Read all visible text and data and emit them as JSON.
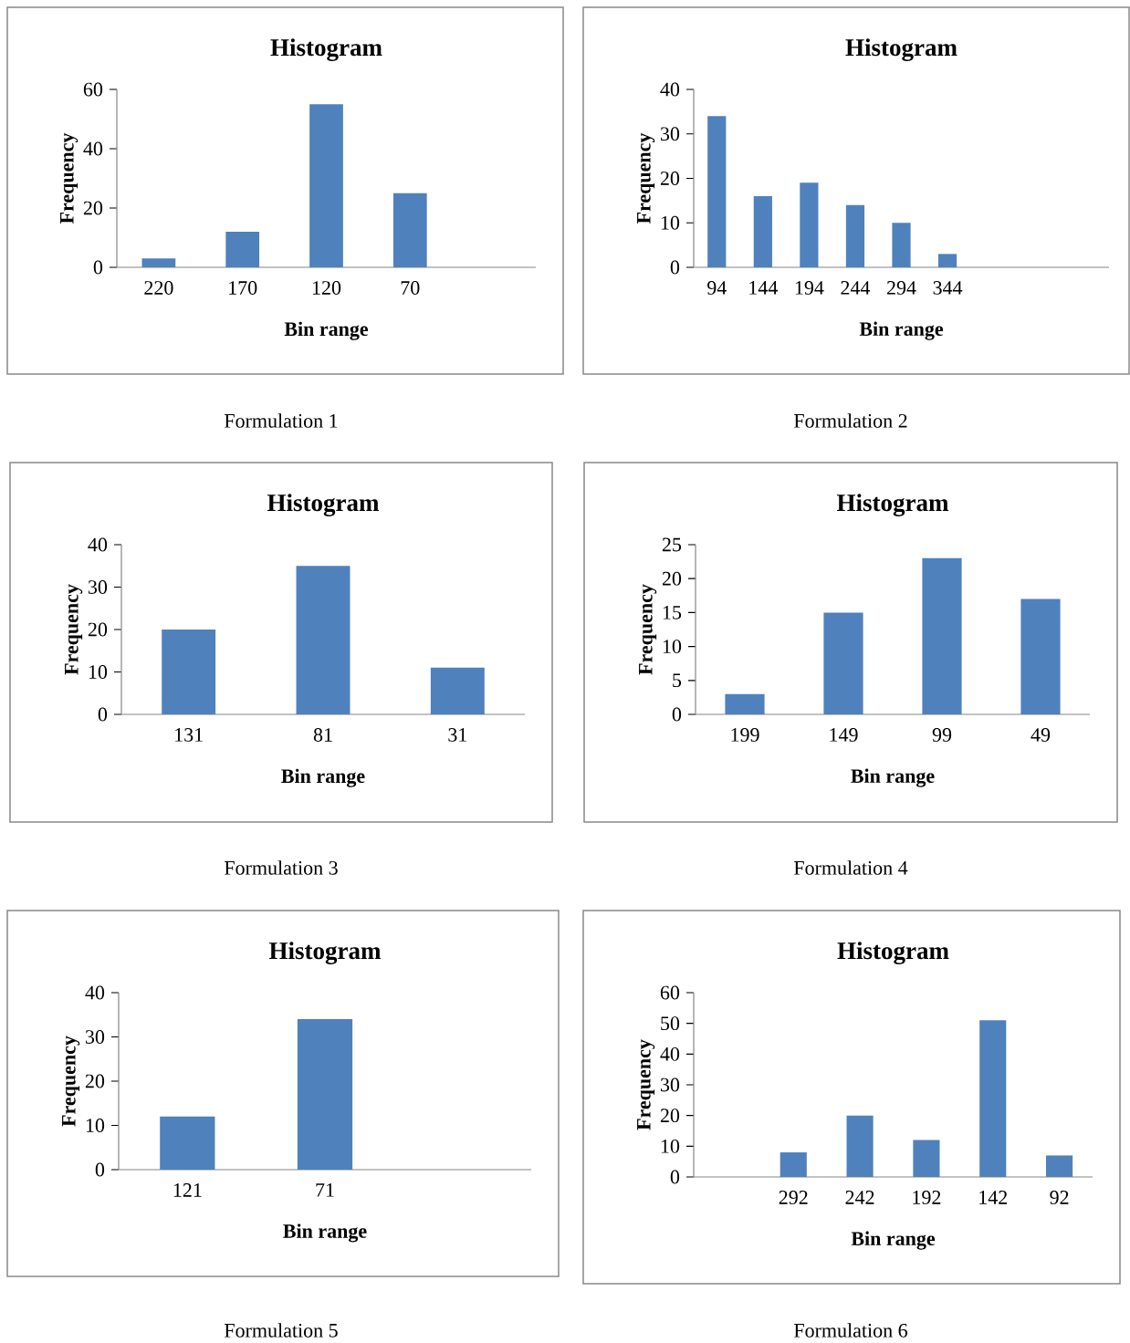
{
  "chart_data": [
    {
      "type": "bar",
      "title": "Histogram",
      "xlabel": "Bin range",
      "ylabel": "Frequency",
      "categories": [
        "220",
        "170",
        "120",
        "70",
        null
      ],
      "values": [
        3,
        12,
        55,
        25,
        null
      ],
      "color": "#4f81bd",
      "ylim": [
        0,
        60
      ],
      "yticks": [
        0,
        20,
        40,
        60
      ],
      "annotations": [
        "Formulation 1"
      ]
    },
    {
      "type": "bar",
      "title": "Histogram",
      "xlabel": "Bin range",
      "ylabel": "Frequency",
      "categories": [
        "94",
        "144",
        "194",
        "244",
        "294",
        "344",
        null,
        null,
        null
      ],
      "values": [
        34,
        16,
        19,
        14,
        10,
        3,
        null,
        null,
        null
      ],
      "color": "#4f81bd",
      "ylim": [
        0,
        40
      ],
      "yticks": [
        0,
        10,
        20,
        30,
        40
      ],
      "annotations": [
        "Formulation 2"
      ]
    },
    {
      "type": "bar",
      "title": "Histogram",
      "xlabel": "Bin range",
      "ylabel": "Frequency",
      "categories": [
        "131",
        "81",
        "31"
      ],
      "values": [
        20,
        35,
        11
      ],
      "color": "#4f81bd",
      "ylim": [
        0,
        40
      ],
      "yticks": [
        0,
        10,
        20,
        30,
        40
      ],
      "annotations": [
        "Formulation 3"
      ]
    },
    {
      "type": "bar",
      "title": "Histogram",
      "xlabel": "Bin range",
      "ylabel": "Frequency",
      "categories": [
        "199",
        "149",
        "99",
        "49"
      ],
      "values": [
        3,
        15,
        23,
        17
      ],
      "color": "#4f81bd",
      "ylim": [
        0,
        25
      ],
      "yticks": [
        0,
        5,
        10,
        15,
        20,
        25
      ],
      "annotations": [
        "Formulation 4"
      ]
    },
    {
      "type": "bar",
      "title": "Histogram",
      "xlabel": "Bin range",
      "ylabel": "Frequency",
      "categories": [
        "121",
        "71",
        null
      ],
      "values": [
        12,
        34,
        null
      ],
      "color": "#4f81bd",
      "ylim": [
        0,
        40
      ],
      "yticks": [
        0,
        10,
        20,
        30,
        40
      ],
      "annotations": [
        "Formulation 5"
      ]
    },
    {
      "type": "bar",
      "title": "Histogram",
      "xlabel": "Bin range",
      "ylabel": "Frequency",
      "categories": [
        null,
        "292",
        "242",
        "192",
        "142",
        "92"
      ],
      "values": [
        null,
        8,
        20,
        12,
        51,
        7
      ],
      "color": "#4f81bd",
      "ylim": [
        0,
        60
      ],
      "yticks": [
        0,
        10,
        20,
        30,
        40,
        50,
        60
      ],
      "annotations": [
        "Formulation 6"
      ]
    }
  ]
}
